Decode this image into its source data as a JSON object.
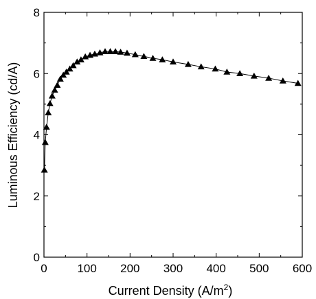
{
  "chart_data": {
    "type": "line",
    "title": "",
    "xlabel": "Current Density (A/m",
    "xlabel_superscript": "2",
    "xlabel_suffix": ")",
    "ylabel": "Luminous Efficiency (cd/A)",
    "xlim": [
      0,
      600
    ],
    "ylim": [
      0,
      8
    ],
    "x_ticks": [
      0,
      100,
      200,
      300,
      400,
      500,
      600
    ],
    "y_ticks": [
      0,
      2,
      4,
      6,
      8
    ],
    "x_tick_labels": [
      "0",
      "100",
      "200",
      "300",
      "400",
      "500",
      "600"
    ],
    "y_tick_labels": [
      "0",
      "2",
      "4",
      "6",
      "8"
    ],
    "grid": false,
    "legend": "none",
    "marker": "filled-triangle",
    "line_color": "#000000",
    "series": [
      {
        "x": [
          1,
          3,
          6,
          10,
          14,
          19,
          25,
          31,
          38,
          45,
          52,
          60,
          68,
          77,
          86,
          96,
          107,
          118,
          130,
          142,
          154,
          166,
          178,
          193,
          212,
          232,
          253,
          275,
          300,
          335,
          365,
          398,
          425,
          455,
          488,
          522,
          555,
          590
        ],
        "y": [
          2.85,
          3.75,
          4.25,
          4.72,
          5.02,
          5.27,
          5.46,
          5.62,
          5.82,
          5.95,
          6.05,
          6.15,
          6.26,
          6.38,
          6.45,
          6.55,
          6.6,
          6.64,
          6.68,
          6.72,
          6.72,
          6.72,
          6.7,
          6.67,
          6.62,
          6.56,
          6.5,
          6.45,
          6.38,
          6.3,
          6.22,
          6.15,
          6.05,
          6.0,
          5.92,
          5.85,
          5.76,
          5.68
        ]
      }
    ]
  }
}
